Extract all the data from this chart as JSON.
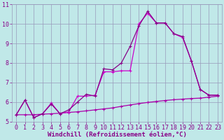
{
  "xlabel": "Windchill (Refroidissement éolien,°C)",
  "bg_color": "#c0e8e8",
  "grid_color": "#9999bb",
  "xlim": [
    -0.5,
    23.5
  ],
  "ylim": [
    5,
    11
  ],
  "yticks": [
    5,
    6,
    7,
    8,
    9,
    10,
    11
  ],
  "xticks": [
    0,
    1,
    2,
    3,
    4,
    5,
    6,
    7,
    8,
    9,
    10,
    11,
    12,
    13,
    14,
    15,
    16,
    17,
    18,
    19,
    20,
    21,
    22,
    23
  ],
  "line1_color": "#cc00cc",
  "line2_color": "#880088",
  "line3_color": "#aa00aa",
  "series1_x": [
    0,
    1,
    2,
    3,
    4,
    5,
    6,
    7,
    8,
    9,
    10,
    11,
    12,
    13,
    14,
    15,
    16,
    17,
    18,
    19,
    20,
    21,
    22,
    23
  ],
  "series1_y": [
    5.35,
    6.1,
    5.2,
    5.4,
    5.95,
    5.4,
    5.5,
    6.3,
    6.3,
    6.35,
    7.55,
    7.55,
    7.6,
    7.6,
    10.0,
    10.55,
    10.05,
    10.05,
    9.5,
    9.3,
    8.1,
    6.65,
    6.35,
    6.35
  ],
  "series2_x": [
    0,
    1,
    2,
    3,
    4,
    5,
    6,
    7,
    8,
    9,
    10,
    11,
    12,
    13,
    14,
    15,
    16,
    17,
    18,
    19,
    20,
    21,
    22,
    23
  ],
  "series2_y": [
    5.35,
    6.1,
    5.2,
    5.4,
    5.9,
    5.4,
    5.6,
    6.0,
    6.4,
    6.3,
    7.7,
    7.65,
    8.0,
    8.85,
    9.9,
    10.65,
    10.05,
    10.05,
    9.5,
    9.35,
    8.1,
    6.65,
    6.35,
    6.35
  ],
  "series3_x": [
    0,
    1,
    2,
    3,
    4,
    5,
    6,
    7,
    8,
    9,
    10,
    11,
    12,
    13,
    14,
    15,
    16,
    17,
    18,
    19,
    20,
    21,
    22,
    23
  ],
  "series3_y": [
    5.35,
    5.35,
    5.35,
    5.38,
    5.4,
    5.43,
    5.47,
    5.5,
    5.55,
    5.6,
    5.65,
    5.7,
    5.78,
    5.85,
    5.92,
    5.98,
    6.03,
    6.08,
    6.12,
    6.15,
    6.18,
    6.2,
    6.25,
    6.3
  ],
  "xlabel_fontsize": 6.5,
  "tick_fontsize": 6.0
}
